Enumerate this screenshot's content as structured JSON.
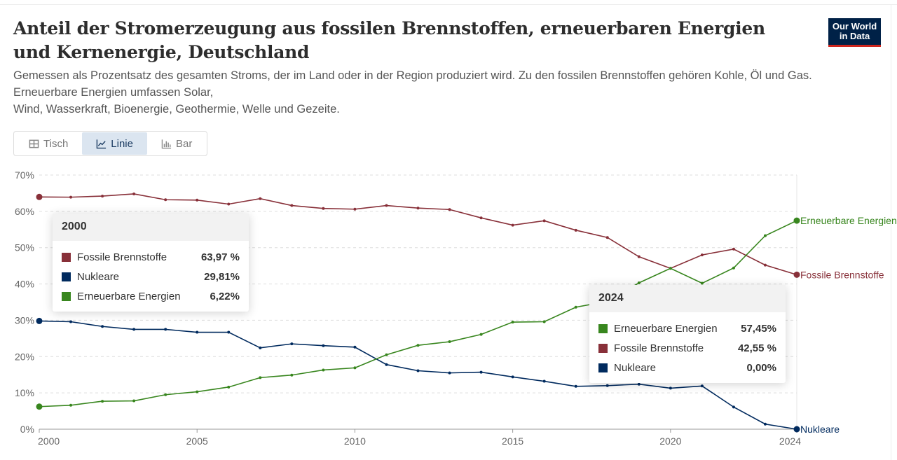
{
  "header": {
    "title": "Anteil der Stromerzeugung aus fossilen Brennstoffen, erneuerbaren Energien und Kernenergie, Deutschland",
    "subtitle_line1": "Gemessen als Prozentsatz des gesamten Stroms, der im Land oder in der Region produziert wird. Zu den fossilen Brennstoffen gehören Kohle, Öl und Gas.",
    "subtitle_line2": "Erneuerbare Energien umfassen Solar,",
    "subtitle_line3": "Wind, Wasserkraft, Bioenergie, Geothermie, Welle und Gezeite.",
    "logo_line1": "Our World",
    "logo_line2": "in Data"
  },
  "tabs": [
    {
      "label": "Tisch",
      "icon": "table-icon",
      "active": false
    },
    {
      "label": "Linie",
      "icon": "line-chart-icon",
      "active": true
    },
    {
      "label": "Bar",
      "icon": "bar-chart-icon",
      "active": false
    }
  ],
  "tooltips": [
    {
      "year": "2000",
      "rows": [
        {
          "name": "Fossile Brennstoffe",
          "value": "63,97 %",
          "color": "#883039"
        },
        {
          "name": "Nukleare",
          "value": "29,81%",
          "color": "#002a5e"
        },
        {
          "name": "Erneuerbare Energien",
          "value": "6,22%",
          "color": "#38861e"
        }
      ]
    },
    {
      "year": "2024",
      "rows": [
        {
          "name": "Erneuerbare Energien",
          "value": "57,45%",
          "color": "#38861e"
        },
        {
          "name": "Fossile Brennstoffe",
          "value": "42,55 %",
          "color": "#883039"
        },
        {
          "name": "Nukleare",
          "value": "0,00%",
          "color": "#002a5e"
        }
      ]
    }
  ],
  "chart_data": {
    "type": "line",
    "x": [
      2000,
      2001,
      2002,
      2003,
      2004,
      2005,
      2006,
      2007,
      2008,
      2009,
      2010,
      2011,
      2012,
      2013,
      2014,
      2015,
      2016,
      2017,
      2018,
      2019,
      2020,
      2021,
      2022,
      2023,
      2024
    ],
    "xticks": [
      "2000",
      "2005",
      "2010",
      "2015",
      "2020",
      "2024"
    ],
    "yticks": [
      "0%",
      "10%",
      "20%",
      "30%",
      "40%",
      "50%",
      "60%",
      "70%"
    ],
    "ylim": [
      0,
      70
    ],
    "grid": "horizontal dashed",
    "legend": "line-end labels",
    "series": [
      {
        "name": "Fossile Brennstoffe",
        "color": "#883039",
        "values": [
          63.97,
          63.9,
          64.2,
          64.8,
          63.2,
          63.1,
          62.0,
          63.5,
          61.6,
          60.8,
          60.6,
          61.6,
          60.9,
          60.5,
          58.2,
          56.2,
          57.4,
          54.8,
          52.8,
          47.5,
          44.3,
          48.0,
          49.6,
          45.2,
          42.55
        ]
      },
      {
        "name": "Nukleare",
        "color": "#002a5e",
        "values": [
          29.81,
          29.6,
          28.3,
          27.5,
          27.5,
          26.7,
          26.7,
          22.4,
          23.5,
          23.0,
          22.6,
          17.8,
          16.1,
          15.5,
          15.7,
          14.4,
          13.2,
          11.8,
          12.0,
          12.4,
          11.3,
          11.9,
          6.1,
          1.4,
          0.0
        ]
      },
      {
        "name": "Erneuerbare Energien",
        "color": "#38861e",
        "values": [
          6.22,
          6.6,
          7.7,
          7.8,
          9.5,
          10.3,
          11.6,
          14.2,
          14.9,
          16.3,
          16.9,
          20.5,
          23.1,
          24.1,
          26.1,
          29.5,
          29.6,
          33.6,
          35.2,
          40.3,
          44.3,
          40.2,
          44.4,
          53.3,
          57.45
        ]
      }
    ]
  }
}
